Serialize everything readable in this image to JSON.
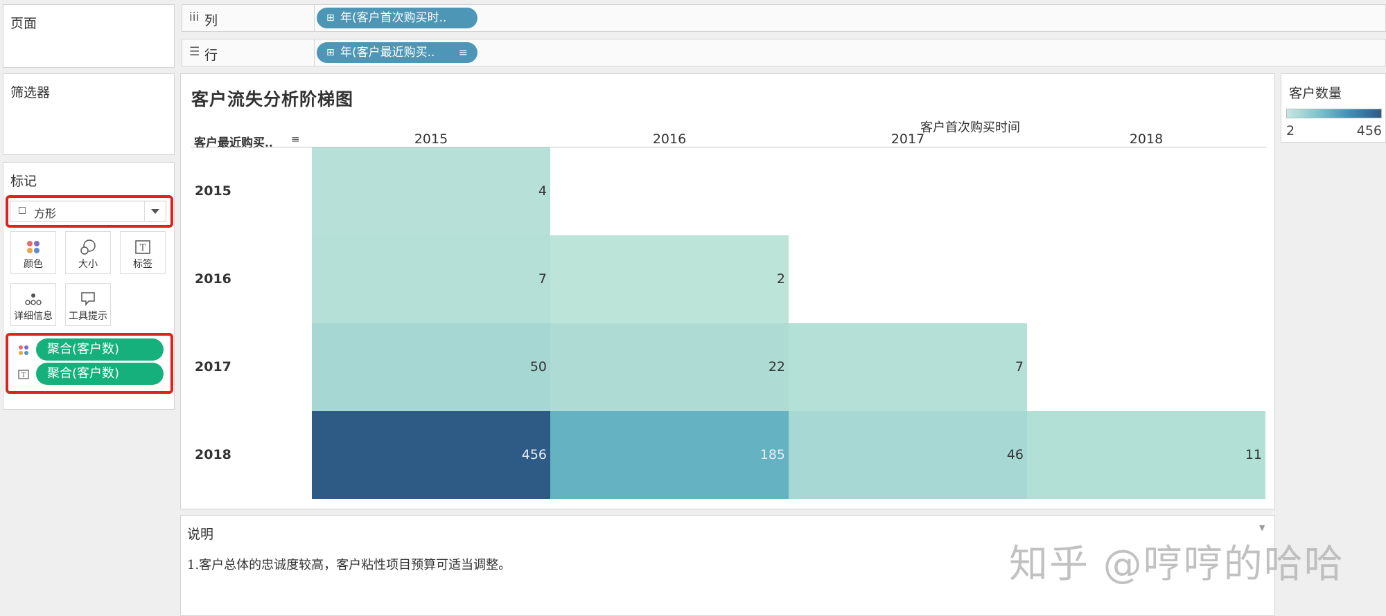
{
  "panels": {
    "pages": "页面",
    "filters": "筛选器",
    "marks": "标记"
  },
  "shelves": {
    "columns": {
      "icon": "iii",
      "label": "列",
      "pill": "年(客户首次购买时.."
    },
    "rows": {
      "icon": "☰",
      "label": "行",
      "pill": "年(客户最近购买.."
    }
  },
  "marks_card": {
    "mark_type": "方形",
    "buttons": [
      "颜色",
      "大小",
      "标签",
      "详细信息",
      "工具提示"
    ],
    "fields": [
      "聚合(客户数)",
      "聚合(客户数)"
    ]
  },
  "view": {
    "title": "客户流失分析阶梯图",
    "column_header": "客户首次购买时间",
    "row_header": "客户最近购买..",
    "sort_icon": "sort-icon"
  },
  "chart_data": {
    "type": "heatmap",
    "title": "客户流失分析阶梯图",
    "xlabel": "客户首次购买时间",
    "ylabel": "客户最近购买..",
    "x": [
      "2015",
      "2016",
      "2017",
      "2018"
    ],
    "y": [
      "2015",
      "2016",
      "2017",
      "2018"
    ],
    "cells": [
      {
        "row": "2015",
        "col": "2015",
        "value": 4
      },
      {
        "row": "2016",
        "col": "2015",
        "value": 7
      },
      {
        "row": "2016",
        "col": "2016",
        "value": 2
      },
      {
        "row": "2017",
        "col": "2015",
        "value": 50
      },
      {
        "row": "2017",
        "col": "2016",
        "value": 22
      },
      {
        "row": "2017",
        "col": "2017",
        "value": 7
      },
      {
        "row": "2018",
        "col": "2015",
        "value": 456
      },
      {
        "row": "2018",
        "col": "2016",
        "value": 185
      },
      {
        "row": "2018",
        "col": "2017",
        "value": 46
      },
      {
        "row": "2018",
        "col": "2018",
        "value": 11
      }
    ],
    "color_range": [
      2,
      456
    ],
    "colors": [
      "#bce4d9",
      "#a5d7d3",
      "#5eaec0",
      "#2e5a86"
    ]
  },
  "legend": {
    "title": "客户数量",
    "min": "2",
    "max": "456"
  },
  "caption": {
    "title": "说明",
    "text": "1.客户总体的忠诚度较高，客户粘性项目预算可适当调整。"
  },
  "watermark": "知乎 @哼哼的哈哈"
}
